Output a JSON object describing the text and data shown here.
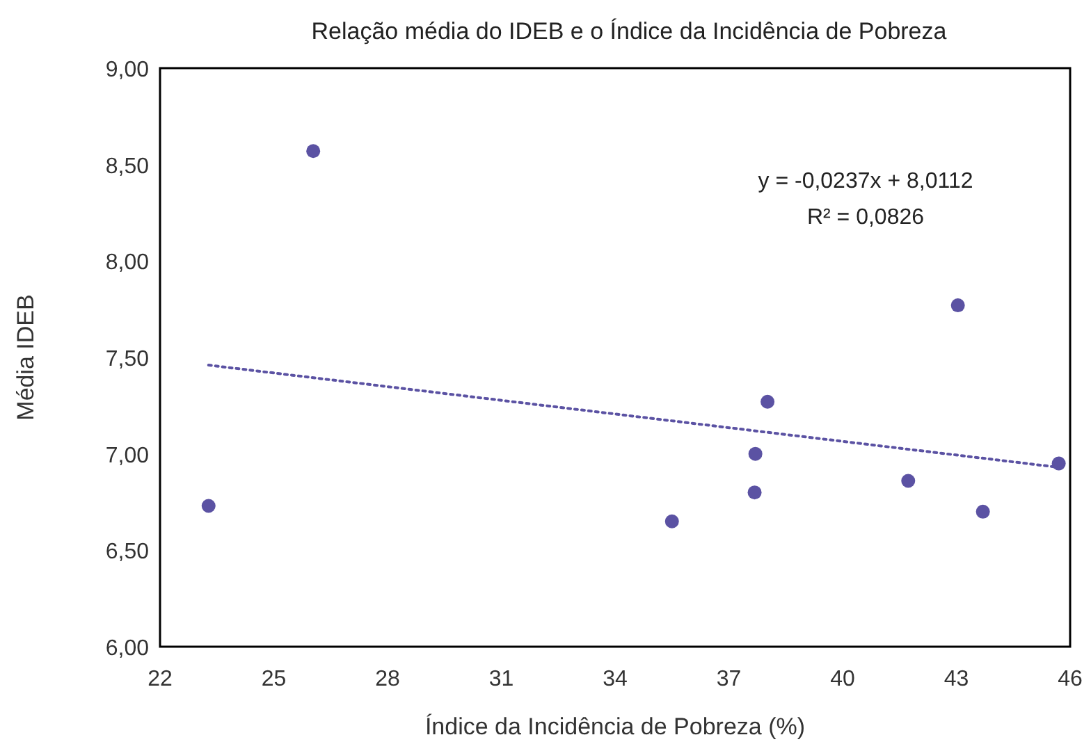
{
  "chart_data": {
    "type": "scatter",
    "title": "Relação média do IDEB e o Índice da Incidência de Pobreza",
    "xlabel": "Índice da Incidência de Pobreza (%)",
    "ylabel": "Média IDEB",
    "annotations": [
      "y = -0,0237x + 8,0112",
      "R² = 0,0826"
    ],
    "xlim": [
      22,
      46
    ],
    "xticks": [
      22,
      25,
      28,
      31,
      34,
      37,
      40,
      43,
      46
    ],
    "ylim": [
      6,
      9
    ],
    "yticks": [
      {
        "value": 6,
        "label": "6,00"
      },
      {
        "value": 6.5,
        "label": "6,50"
      },
      {
        "value": 7,
        "label": "7,00"
      },
      {
        "value": 7.5,
        "label": "7,50"
      },
      {
        "value": 8,
        "label": "8,00"
      },
      {
        "value": 8.5,
        "label": "8,50"
      },
      {
        "value": 9,
        "label": "9,00"
      }
    ],
    "grid": false,
    "marker": "circle",
    "series": [
      {
        "color": "#5b52a3",
        "x": [
          26.04,
          23.28,
          35.5,
          37.68,
          37.7,
          38.02,
          41.73,
          43.04,
          43.7,
          45.7
        ],
        "values": [
          8.57,
          6.73,
          6.65,
          6.8,
          7.0,
          7.27,
          6.86,
          7.77,
          6.7,
          6.95
        ]
      },
      {
        "type": "line",
        "color": "#5b52a3",
        "line_style": "dotted",
        "marker": "none",
        "x": [
          23.28,
          45.7
        ],
        "values": [
          7.46,
          6.93
        ]
      }
    ]
  }
}
